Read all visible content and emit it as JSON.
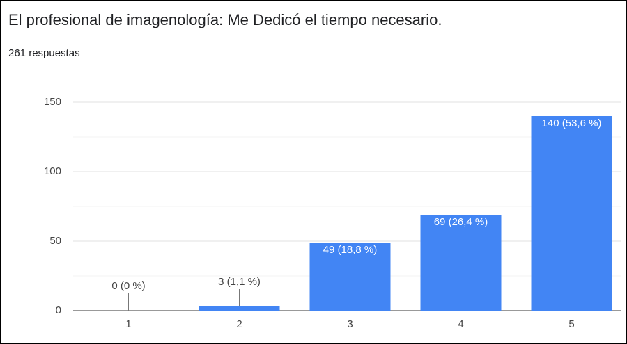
{
  "chart_data": {
    "type": "bar",
    "title": "El profesional de imagenología: Me Dedicó el tiempo necesario.",
    "subtitle": "261 respuestas",
    "categories": [
      "1",
      "2",
      "3",
      "4",
      "5"
    ],
    "values": [
      0,
      3,
      49,
      69,
      140
    ],
    "value_labels": [
      "0 (0 %)",
      "3 (1,1 %)",
      "49 (18,8 %)",
      "69 (26,4 %)",
      "140 (53,6 %)"
    ],
    "color": "#4285f4",
    "ylim": [
      0,
      150
    ],
    "yticks": [
      0,
      50,
      100,
      150
    ],
    "minor_yticks": [
      25,
      75,
      125
    ],
    "grid": true
  }
}
